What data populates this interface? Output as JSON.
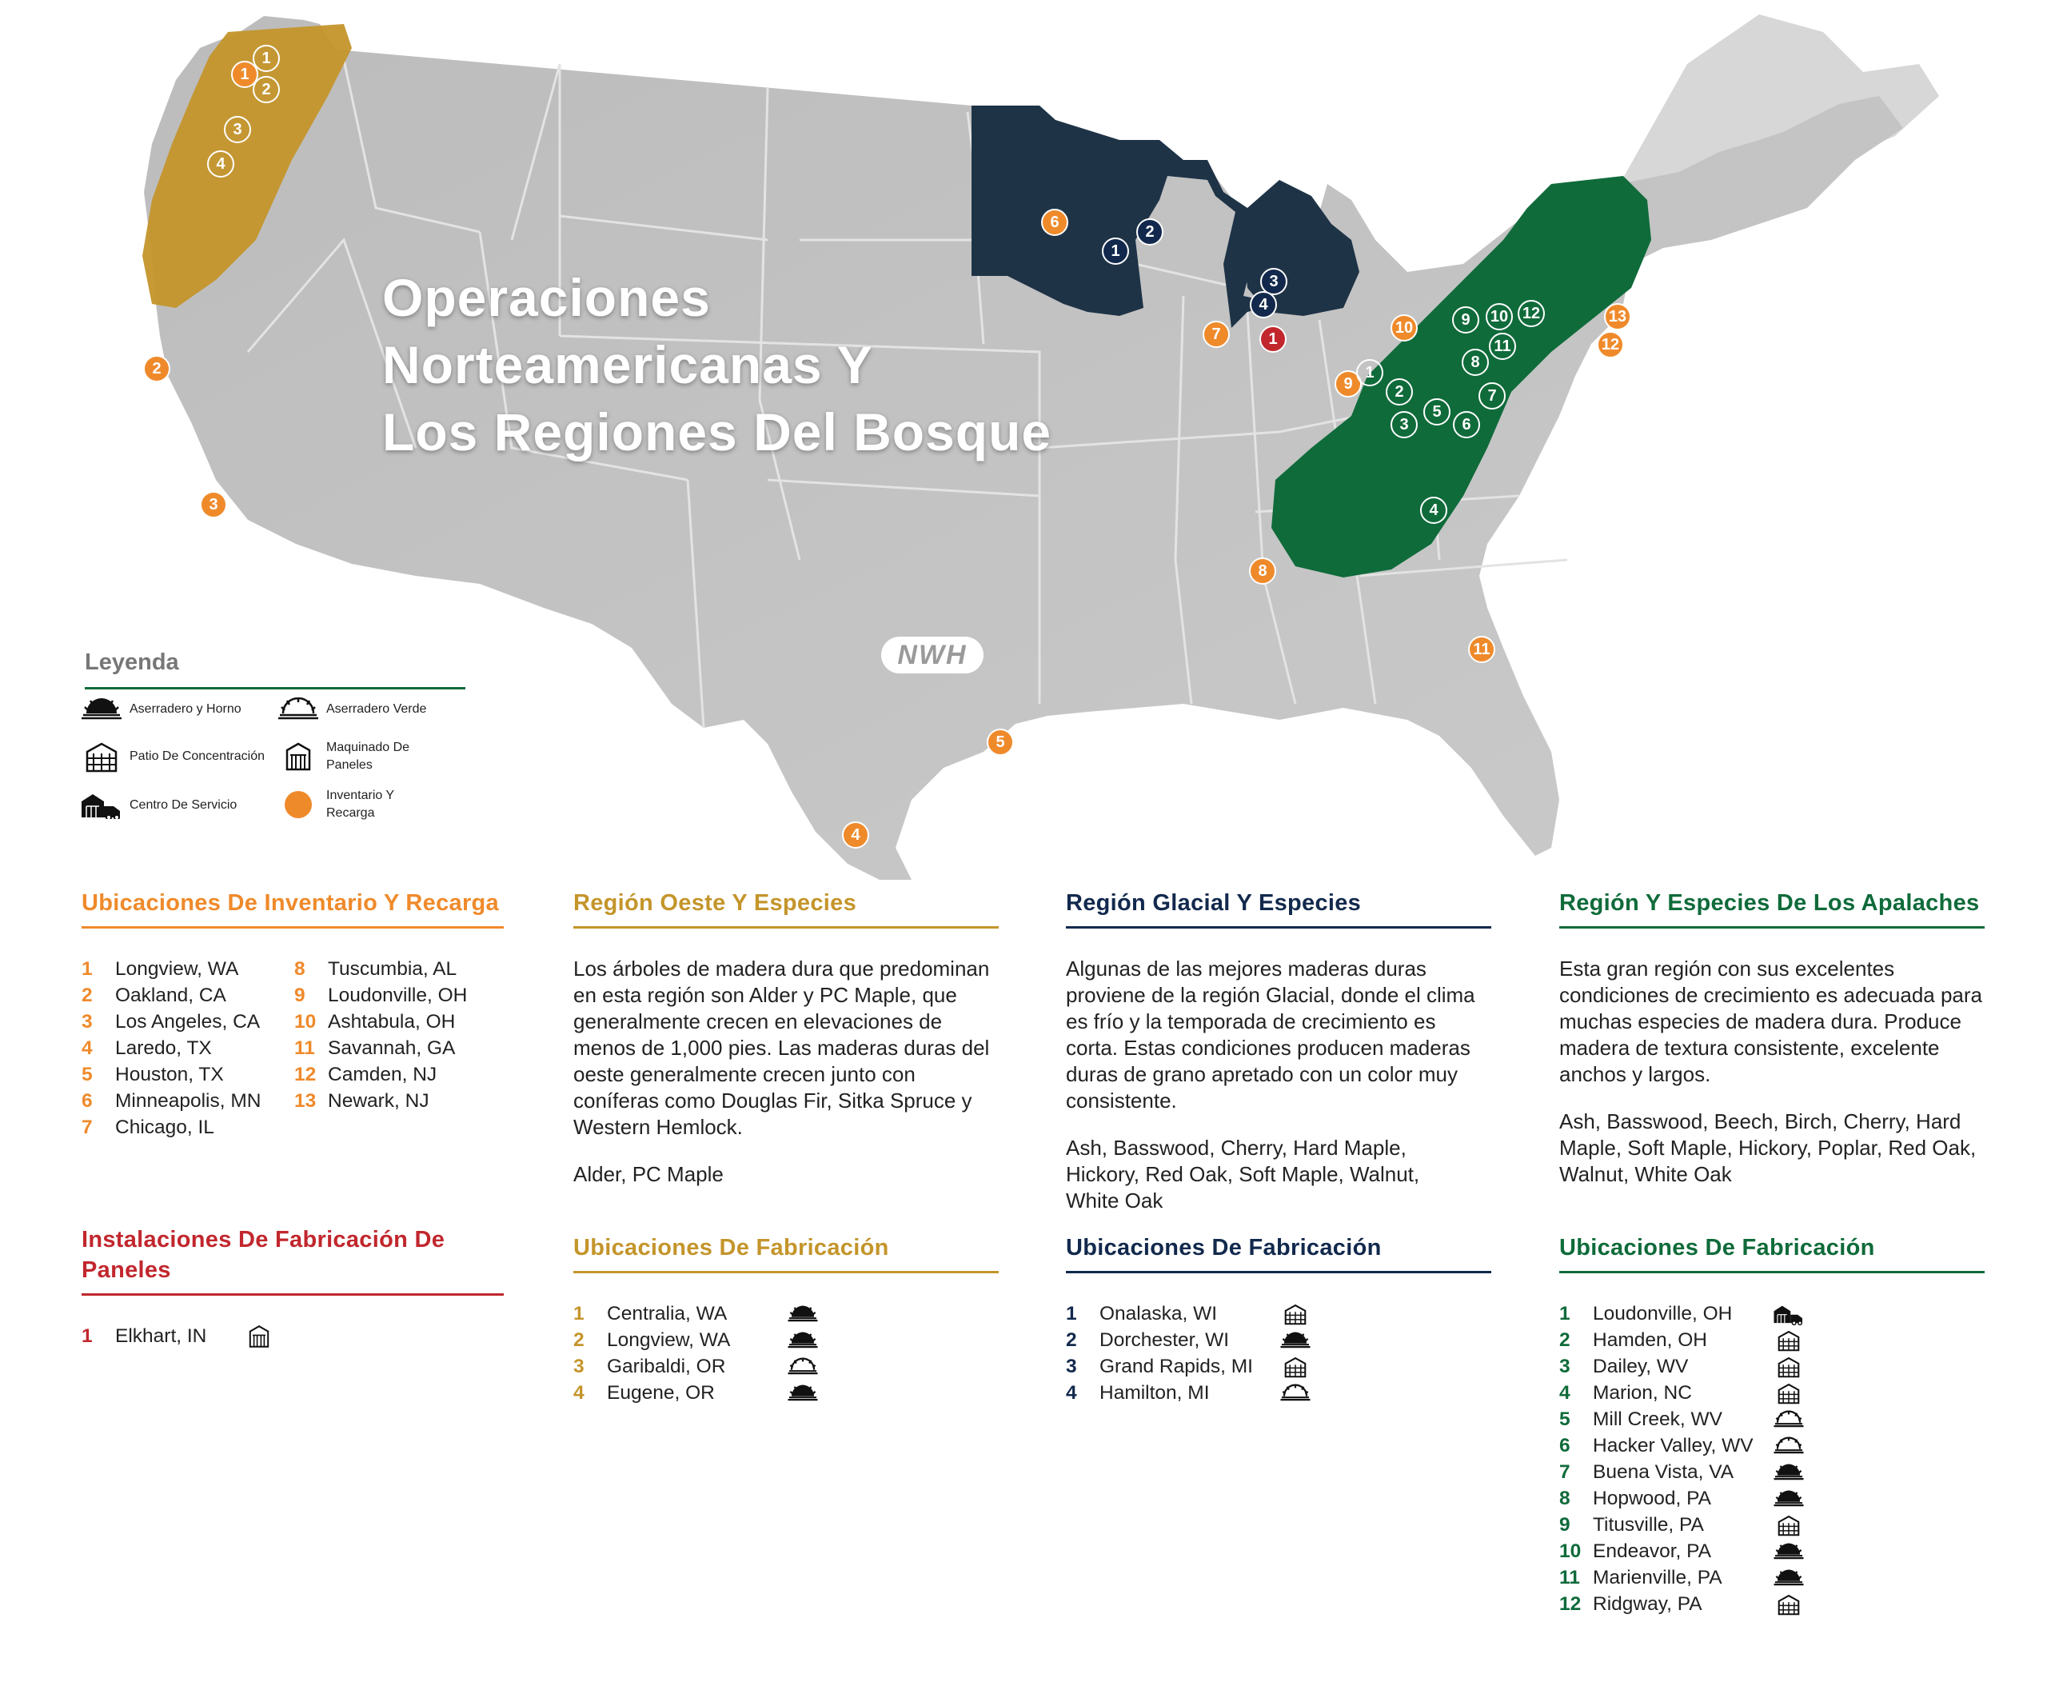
{
  "map": {
    "title_lines": [
      "Operaciones",
      "Norteamericanas Y",
      "Los Regiones Del Bosque"
    ],
    "logo": "NWH",
    "markers": {
      "inventory": [
        "1",
        "2",
        "3",
        "4",
        "5",
        "6",
        "7",
        "8",
        "9",
        "10",
        "11",
        "12",
        "13"
      ],
      "west": [
        "1",
        "2",
        "3",
        "4"
      ],
      "glacial": [
        "1",
        "2",
        "3",
        "4"
      ],
      "panel": [
        "1"
      ],
      "appalachian": [
        "1",
        "2",
        "3",
        "4",
        "5",
        "6",
        "7",
        "8",
        "9",
        "10",
        "11",
        "12"
      ]
    }
  },
  "legend": {
    "title": "Leyenda",
    "items": [
      {
        "label": "Aserradero y Horno",
        "icon": "sawmill-kiln-icon"
      },
      {
        "label": "Aserradero Verde",
        "icon": "green-sawmill-icon"
      },
      {
        "label": "Patio De Concentración",
        "icon": "concentration-yard-icon"
      },
      {
        "label": "Maquinado De Paneles",
        "icon": "panel-machining-icon"
      },
      {
        "label": "Centro De Servicio",
        "icon": "service-center-icon"
      },
      {
        "label": "Inventario Y Recarga",
        "icon": "inventory-dot-icon"
      }
    ]
  },
  "colors": {
    "inventory": "#ef8a2b",
    "west": "#c4952b",
    "glacial": "#12294d",
    "panel": "#c1272d",
    "appalachian": "#0f6b3a",
    "land": "#c6c6c6"
  },
  "inventory": {
    "heading": "Ubicaciones De Inventario Y Recarga",
    "items": [
      {
        "num": "1",
        "name": "Longview, WA"
      },
      {
        "num": "2",
        "name": "Oakland, CA"
      },
      {
        "num": "3",
        "name": "Los Angeles, CA"
      },
      {
        "num": "4",
        "name": "Laredo, TX"
      },
      {
        "num": "5",
        "name": "Houston, TX"
      },
      {
        "num": "6",
        "name": "Minneapolis, MN"
      },
      {
        "num": "7",
        "name": "Chicago, IL"
      },
      {
        "num": "8",
        "name": "Tuscumbia, AL"
      },
      {
        "num": "9",
        "name": "Loudonville, OH"
      },
      {
        "num": "10",
        "name": "Ashtabula, OH"
      },
      {
        "num": "11",
        "name": "Savannah, GA"
      },
      {
        "num": "12",
        "name": "Camden, NJ"
      },
      {
        "num": "13",
        "name": "Newark, NJ"
      }
    ]
  },
  "panels": {
    "heading": "Instalaciones De Fabricación De Paneles",
    "items": [
      {
        "num": "1",
        "name": "Elkhart, IN",
        "icon": "panel-machining-icon"
      }
    ]
  },
  "west": {
    "heading": "Región Oeste Y Especies",
    "body": "Los árboles de madera dura que predominan en esta región son Alder y PC Maple, que generalmente crecen en elevaciones de menos de 1,000 pies. Las maderas duras del oeste generalmente crecen junto con coníferas como Douglas Fir, Sitka Spruce y Western Hemlock.",
    "species": "Alder, PC Maple",
    "mfg_heading": "Ubicaciones De Fabricación",
    "mfg": [
      {
        "num": "1",
        "name": "Centralia, WA",
        "icon": "sawmill-kiln-icon"
      },
      {
        "num": "2",
        "name": "Longview, WA",
        "icon": "sawmill-kiln-icon"
      },
      {
        "num": "3",
        "name": "Garibaldi, OR",
        "icon": "green-sawmill-icon"
      },
      {
        "num": "4",
        "name": "Eugene, OR",
        "icon": "sawmill-kiln-icon"
      }
    ]
  },
  "glacial": {
    "heading": "Región Glacial Y Especies",
    "body": "Algunas de las mejores maderas duras proviene de la región Glacial, donde el clima es frío y la temporada de crecimiento es corta. Estas condiciones producen maderas duras de grano apretado con un color muy consistente.",
    "species": "Ash, Basswood, Cherry, Hard Maple, Hickory, Red Oak, Soft Maple, Walnut, White Oak",
    "mfg_heading": "Ubicaciones De Fabricación",
    "mfg": [
      {
        "num": "1",
        "name": "Onalaska, WI",
        "icon": "concentration-yard-icon"
      },
      {
        "num": "2",
        "name": "Dorchester, WI",
        "icon": "sawmill-kiln-icon"
      },
      {
        "num": "3",
        "name": "Grand Rapids, MI",
        "icon": "concentration-yard-icon"
      },
      {
        "num": "4",
        "name": "Hamilton, MI",
        "icon": "green-sawmill-icon"
      }
    ]
  },
  "appalachian": {
    "heading": "Región Y Especies De Los Apalaches",
    "body": "Esta gran región con sus excelentes condiciones de crecimiento es adecuada para muchas especies de madera dura. Produce madera de textura consistente, excelente anchos y largos.",
    "species": "Ash, Basswood, Beech, Birch, Cherry, Hard Maple, Soft Maple, Hickory, Poplar, Red Oak, Walnut, White Oak",
    "mfg_heading": "Ubicaciones De Fabricación",
    "mfg": [
      {
        "num": "1",
        "name": "Loudonville, OH",
        "icon": "service-center-icon"
      },
      {
        "num": "2",
        "name": "Hamden, OH",
        "icon": "concentration-yard-icon"
      },
      {
        "num": "3",
        "name": "Dailey, WV",
        "icon": "concentration-yard-icon"
      },
      {
        "num": "4",
        "name": "Marion, NC",
        "icon": "concentration-yard-icon"
      },
      {
        "num": "5",
        "name": "Mill Creek, WV",
        "icon": "green-sawmill-icon"
      },
      {
        "num": "6",
        "name": "Hacker Valley, WV",
        "icon": "green-sawmill-icon"
      },
      {
        "num": "7",
        "name": "Buena Vista, VA",
        "icon": "sawmill-kiln-icon"
      },
      {
        "num": "8",
        "name": "Hopwood, PA",
        "icon": "sawmill-kiln-icon"
      },
      {
        "num": "9",
        "name": "Titusville, PA",
        "icon": "concentration-yard-icon"
      },
      {
        "num": "10",
        "name": "Endeavor, PA",
        "icon": "sawmill-kiln-icon"
      },
      {
        "num": "11",
        "name": "Marienville, PA",
        "icon": "sawmill-kiln-icon"
      },
      {
        "num": "12",
        "name": "Ridgway, PA",
        "icon": "concentration-yard-icon"
      }
    ]
  }
}
